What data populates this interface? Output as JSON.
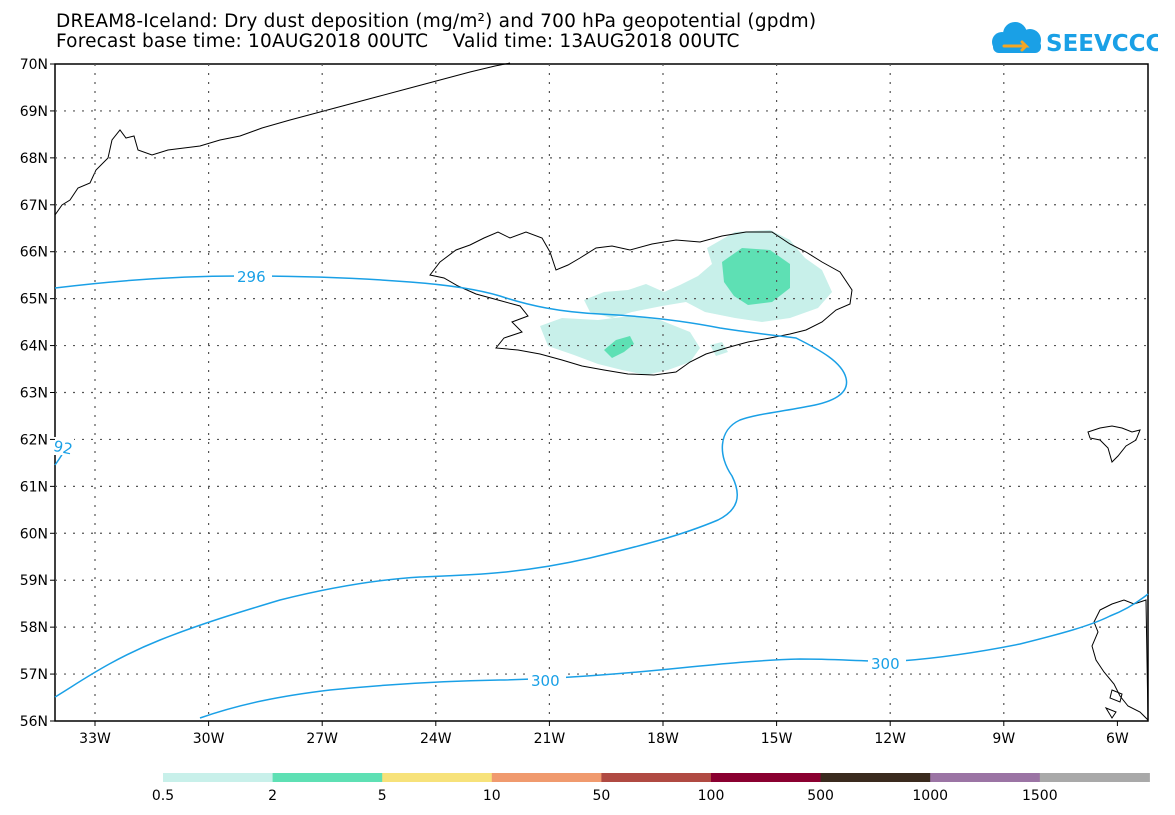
{
  "title": {
    "line1": "DREAM8-Iceland: Dry dust deposition (mg/m²) and 700 hPa geopotential (gpdm)",
    "line2": "Forecast base time: 10AUG2018 00UTC    Valid time: 13AUG2018 00UTC"
  },
  "logo": {
    "text": "SEEVCCC",
    "icon": "cloud-icon",
    "color": "#1aa0e6"
  },
  "map": {
    "lat_labels": [
      "56N",
      "57N",
      "58N",
      "59N",
      "60N",
      "61N",
      "62N",
      "63N",
      "64N",
      "65N",
      "66N",
      "67N",
      "68N",
      "69N",
      "70N"
    ],
    "lon_labels": [
      "33W",
      "30W",
      "27W",
      "24W",
      "21W",
      "18W",
      "15W",
      "12W",
      "9W",
      "6W"
    ],
    "contour_labels": [
      "296",
      "92",
      "300",
      "300"
    ],
    "contour_color": "#1aa0e6"
  },
  "legend": {
    "values": [
      "0.5",
      "2",
      "5",
      "10",
      "50",
      "100",
      "500",
      "1000",
      "1500"
    ],
    "colors": [
      "#c8f0ea",
      "#5ee0b4",
      "#f7e27a",
      "#f09a6e",
      "#b04a42",
      "#8a0030",
      "#3a2a1e",
      "#9b74a4",
      "#a9a9a9"
    ]
  }
}
